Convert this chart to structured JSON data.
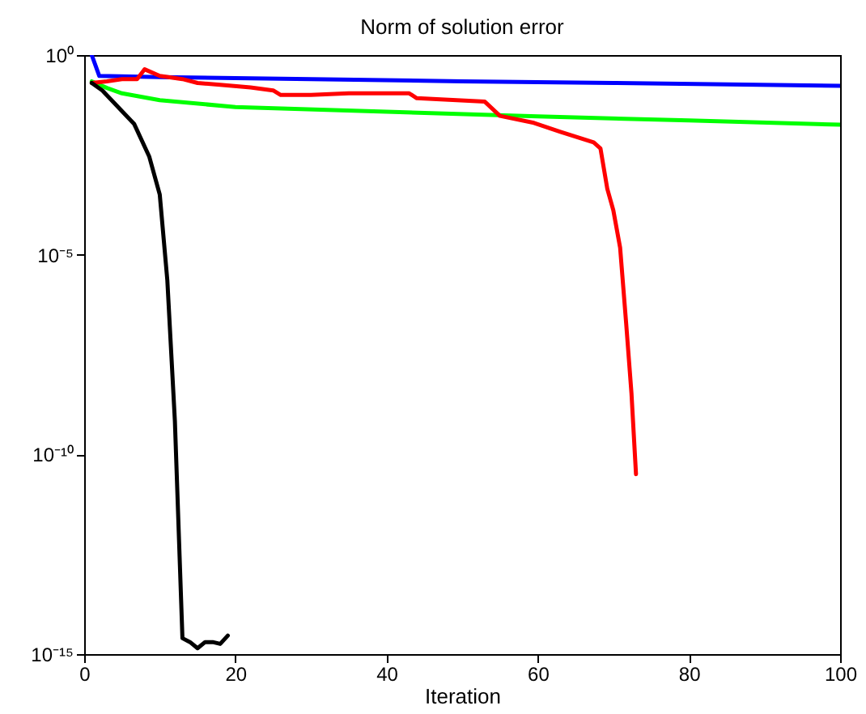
{
  "chart_data": {
    "type": "line",
    "title": "Norm of solution error",
    "xlabel": "Iteration",
    "xlim": [
      0,
      100
    ],
    "xticks": [
      0,
      20,
      40,
      60,
      80,
      100
    ],
    "ylim": [
      1e-15,
      1
    ],
    "yticks": [
      {
        "value": 1e-15,
        "label": "10⁻¹⁵"
      },
      {
        "value": 1e-10,
        "label": "10⁻¹⁰"
      },
      {
        "value": 1e-05,
        "label": "10⁻⁵"
      },
      {
        "value": 1,
        "label": "10⁰"
      }
    ],
    "log": "y",
    "grid": false,
    "marker": "none",
    "line_style": "solid",
    "series": [
      {
        "color": "#0000ff",
        "x": [
          1,
          2,
          10,
          30,
          50,
          70,
          100
        ],
        "values": [
          1.0,
          0.3,
          0.28,
          0.25,
          0.22,
          0.2,
          0.17
        ]
      },
      {
        "color": "#00ff00",
        "x": [
          1,
          3,
          5,
          10,
          20,
          40,
          60,
          80,
          100
        ],
        "values": [
          0.22,
          0.15,
          0.11,
          0.074,
          0.05,
          0.038,
          0.029,
          0.023,
          0.018
        ]
      },
      {
        "color": "#ff0000",
        "x": [
          1,
          3,
          5,
          7,
          8,
          10,
          13,
          15,
          18,
          22,
          25,
          26,
          30,
          35,
          38,
          43,
          44,
          53,
          55,
          59.5,
          63,
          67.4,
          68.3,
          69.2,
          70,
          70.9,
          71.7,
          72.4,
          73
        ],
        "values": [
          0.2,
          0.22,
          0.25,
          0.25,
          0.44,
          0.3,
          0.25,
          0.2,
          0.18,
          0.155,
          0.13,
          0.1,
          0.1,
          0.11,
          0.11,
          0.11,
          0.083,
          0.068,
          0.03,
          0.02,
          0.012,
          0.0065,
          0.0046,
          0.00045,
          0.00013,
          1.5e-05,
          1.9e-07,
          3.4e-09,
          3.2e-11
        ]
      },
      {
        "color": "#000000",
        "x": [
          1,
          2.4,
          6.6,
          8.6,
          10,
          11,
          12,
          13,
          14,
          15,
          16,
          17,
          18,
          19
        ],
        "values": [
          0.2,
          0.13,
          0.019,
          0.0029,
          0.00032,
          2.3e-06,
          6.9e-10,
          2.5e-15,
          2e-15,
          1.4e-15,
          2e-15,
          2e-15,
          1.8e-15,
          2.9e-15
        ]
      }
    ]
  }
}
